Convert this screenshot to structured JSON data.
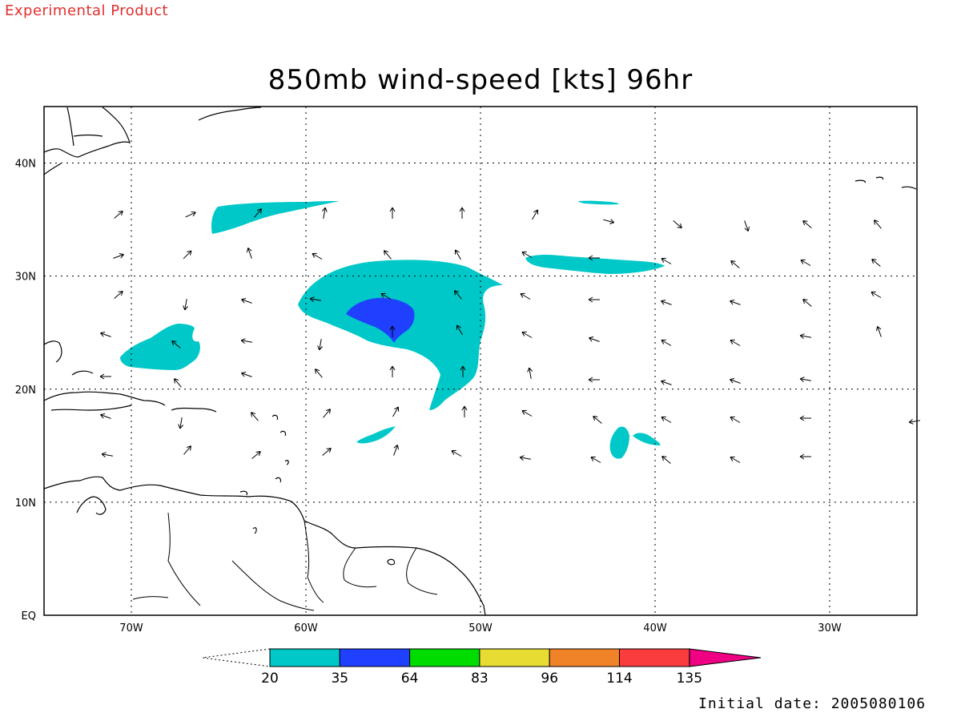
{
  "header": {
    "product_label": "Experimental Product",
    "title": "850mb wind-speed [kts] 96hr"
  },
  "footer": {
    "initial_date": "Initial date: 2005080106"
  },
  "map": {
    "lon_range": [
      -75,
      -25
    ],
    "lat_range": [
      0,
      45
    ],
    "lon_ticks": [
      {
        "lon": -70,
        "label": "70W"
      },
      {
        "lon": -60,
        "label": "60W"
      },
      {
        "lon": -50,
        "label": "50W"
      },
      {
        "lon": -40,
        "label": "40W"
      },
      {
        "lon": -30,
        "label": "30W"
      }
    ],
    "lat_ticks": [
      {
        "lat": 0,
        "label": "EQ"
      },
      {
        "lat": 10,
        "label": "10N"
      },
      {
        "lat": 20,
        "label": "20N"
      },
      {
        "lat": 30,
        "label": "30N"
      },
      {
        "lat": 40,
        "label": "40N"
      }
    ],
    "grid": "dotted"
  },
  "colorbar": {
    "colors": [
      "#00c8c8",
      "#2040ff",
      "#00dc00",
      "#e6dc32",
      "#f08228",
      "#fa3c3c",
      "#f00082"
    ],
    "labels": [
      "20",
      "35",
      "64",
      "83",
      "96",
      "114",
      "135"
    ]
  }
}
